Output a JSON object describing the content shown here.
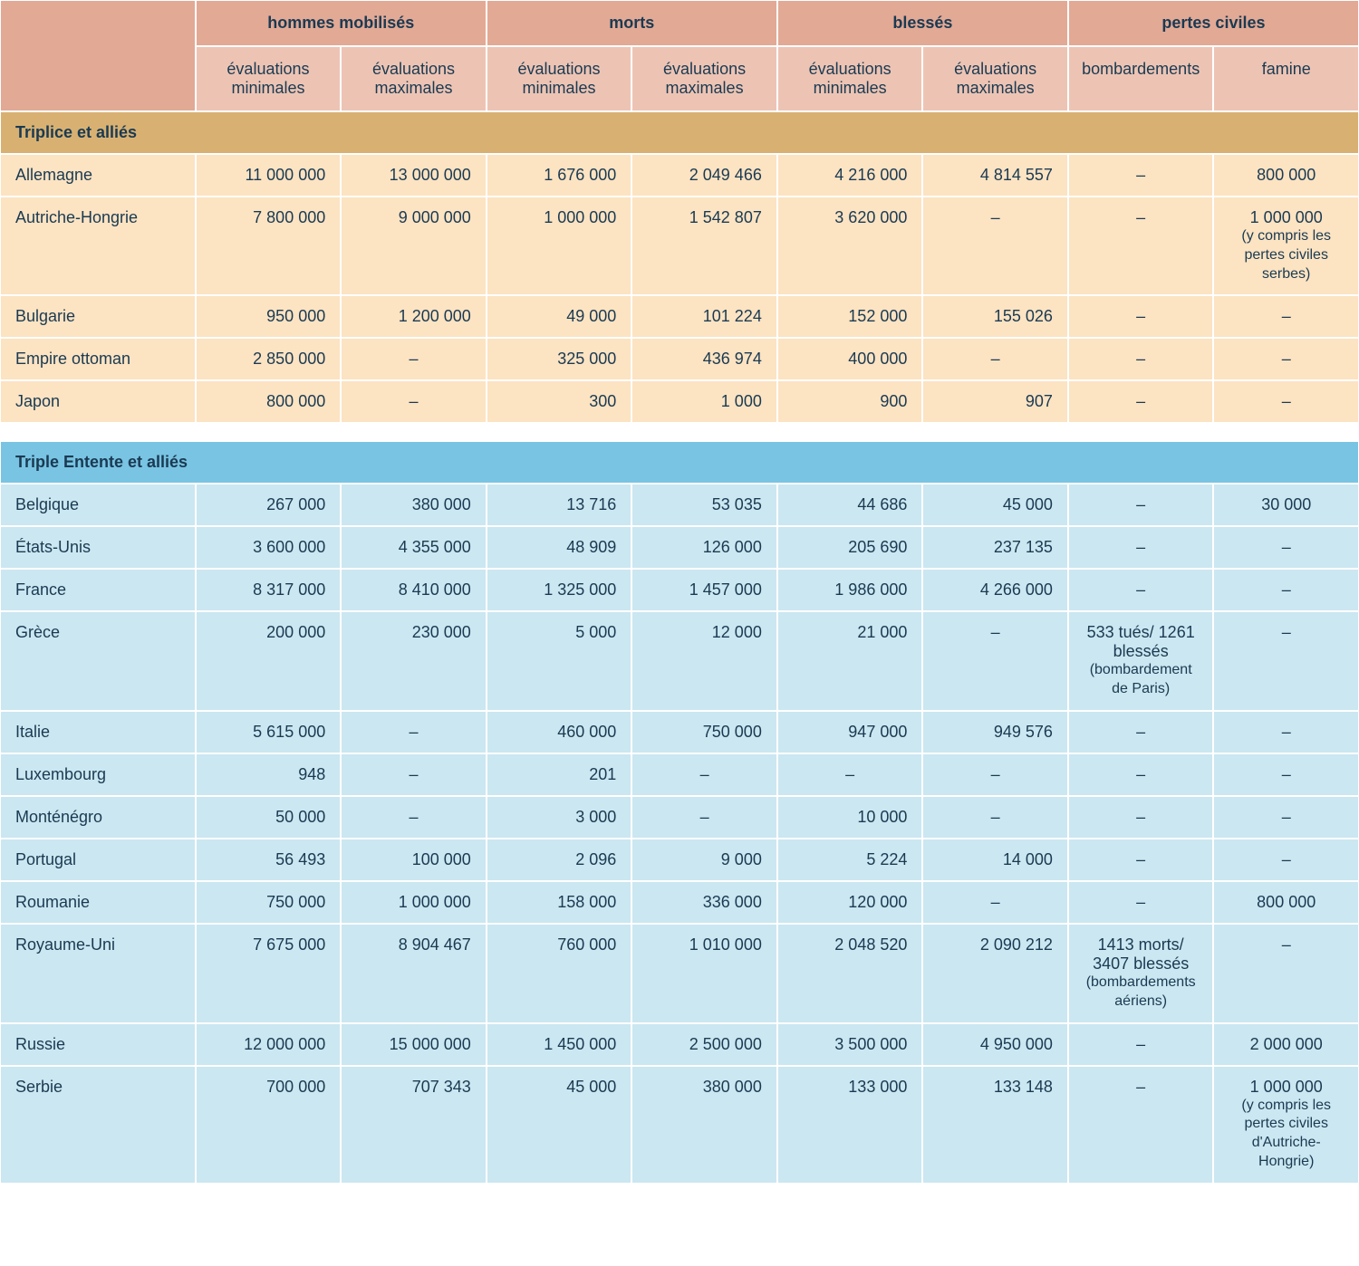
{
  "colors": {
    "header_top_bg": "#e2a995",
    "header_sub_bg": "#edc4b4",
    "header_text": "#1a3a52",
    "section_a_bg": "#d8b172",
    "row_a_bg": "#fce3c2",
    "section_b_bg": "#79c4e3",
    "row_b_bg": "#cbe7f1",
    "text": "#1a3a52"
  },
  "header": {
    "groups": [
      {
        "label": "hommes mobilisés",
        "subs": [
          "évaluations minimales",
          "évaluations maximales"
        ]
      },
      {
        "label": "morts",
        "subs": [
          "évaluations minimales",
          "évaluations maximales"
        ]
      },
      {
        "label": "blessés",
        "subs": [
          "évaluations minimales",
          "évaluations maximales"
        ]
      },
      {
        "label": "pertes civiles",
        "subs": [
          "bombardements",
          "famine"
        ]
      }
    ]
  },
  "sections": [
    {
      "title": "Triplice et alliés",
      "style": "a",
      "rows": [
        {
          "country": "Allemagne",
          "cells": [
            "11 000 000",
            "13 000 000",
            "1 676 000",
            "2 049 466",
            "4 216 000",
            "4 814 557",
            "–",
            "800 000"
          ]
        },
        {
          "country": "Autriche-Hongrie",
          "cells": [
            "7 800 000",
            "9 000 000",
            "1 000 000",
            "1 542 807",
            "3 620 000",
            "–",
            "–",
            {
              "main": "1 000 000",
              "note": "(y compris les pertes civiles serbes)"
            }
          ]
        },
        {
          "country": "Bulgarie",
          "cells": [
            "950 000",
            "1 200 000",
            "49 000",
            "101 224",
            "152 000",
            "155 026",
            "–",
            "–"
          ]
        },
        {
          "country": "Empire ottoman",
          "cells": [
            "2 850 000",
            "–",
            "325 000",
            "436 974",
            "400 000",
            "–",
            "–",
            "–"
          ]
        },
        {
          "country": "Japon",
          "cells": [
            "800 000",
            "–",
            "300",
            "1 000",
            "900",
            "907",
            "–",
            "–"
          ]
        }
      ]
    },
    {
      "title": "Triple Entente et alliés",
      "style": "b",
      "rows": [
        {
          "country": "Belgique",
          "cells": [
            "267 000",
            "380 000",
            "13 716",
            "53 035",
            "44 686",
            "45 000",
            "–",
            "30 000"
          ]
        },
        {
          "country": "États-Unis",
          "cells": [
            "3 600 000",
            "4 355 000",
            "48 909",
            "126 000",
            "205 690",
            "237 135",
            "–",
            "–"
          ]
        },
        {
          "country": "France",
          "cells": [
            "8 317 000",
            "8 410 000",
            "1 325 000",
            "1 457 000",
            "1 986 000",
            "4 266 000",
            "–",
            "–"
          ]
        },
        {
          "country": "Grèce",
          "cells": [
            "200 000",
            "230 000",
            "5 000",
            "12 000",
            "21 000",
            "–",
            {
              "main": "533 tués/ 1261 blessés",
              "note": "(bombardement de Paris)"
            },
            "–"
          ]
        },
        {
          "country": "Italie",
          "cells": [
            "5 615 000",
            "–",
            "460 000",
            "750 000",
            "947 000",
            "949 576",
            "–",
            "–"
          ]
        },
        {
          "country": "Luxembourg",
          "cells": [
            "948",
            "–",
            "201",
            "–",
            "–",
            "–",
            "–",
            "–"
          ]
        },
        {
          "country": "Monténégro",
          "cells": [
            "50 000",
            "–",
            "3 000",
            "–",
            "10 000",
            "–",
            "–",
            "–"
          ]
        },
        {
          "country": "Portugal",
          "cells": [
            "56 493",
            "100 000",
            "2 096",
            "9 000",
            "5 224",
            "14 000",
            "–",
            "–"
          ]
        },
        {
          "country": "Roumanie",
          "cells": [
            "750 000",
            "1 000 000",
            "158 000",
            "336 000",
            "120 000",
            "–",
            "–",
            "800 000"
          ]
        },
        {
          "country": "Royaume-Uni",
          "cells": [
            "7 675 000",
            "8 904 467",
            "760 000",
            "1 010 000",
            "2 048 520",
            "2 090 212",
            {
              "main": "1413 morts/ 3407 blessés",
              "note": "(bombardements aériens)"
            },
            "–"
          ]
        },
        {
          "country": "Russie",
          "cells": [
            "12 000 000",
            "15 000 000",
            "1 450 000",
            "2 500 000",
            "3 500 000",
            "4 950 000",
            "–",
            "2 000 000"
          ]
        },
        {
          "country": "Serbie",
          "cells": [
            "700 000",
            "707 343",
            "45 000",
            "380 000",
            "133 000",
            "133 148",
            "–",
            {
              "main": "1 000 000",
              "note": "(y compris les pertes civiles d'Autriche-Hongrie)"
            }
          ]
        }
      ]
    }
  ]
}
